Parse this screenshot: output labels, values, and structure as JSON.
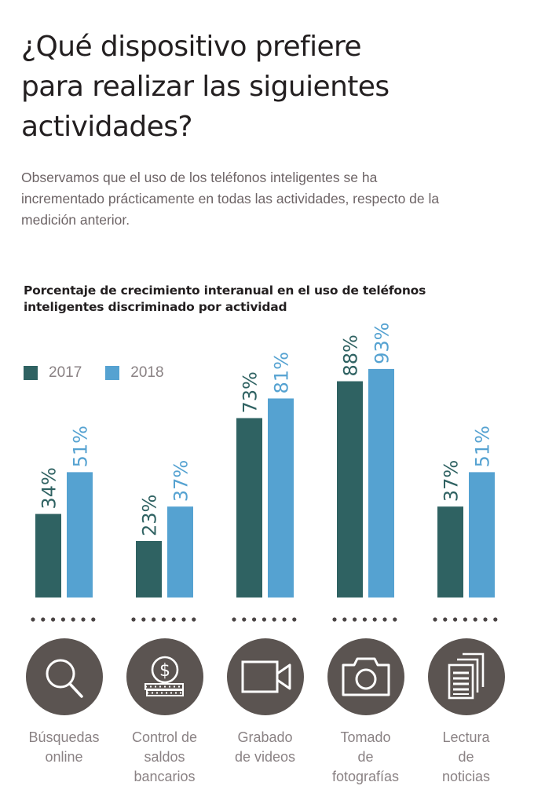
{
  "header": {
    "title": "¿Qué dispositivo prefiere para realizar las siguientes actividades?",
    "title_lines": [
      "¿Qué dispositivo prefiere",
      "para realizar las siguientes",
      "actividades?"
    ],
    "subtitle_lines": [
      "Observamos que el uso de los teléfonos inteligentes se ha",
      "incrementado prácticamente en todas las actividades, respecto de la",
      "medición anterior."
    ]
  },
  "colors": {
    "series_2017": "#2f6262",
    "series_2018": "#55a2d1",
    "icon_bg": "#5b5451",
    "dots": "#4a4444"
  },
  "chart_data": {
    "type": "bar",
    "title": "Porcentaje de crecimiento interanual en el uso de teléfonos inteligentes discriminado por actividad",
    "title_lines": [
      "Porcentaje de crecimiento interanual en el uso de teléfonos",
      "inteligentes discriminado por actividad"
    ],
    "categories": [
      "Búsquedas online",
      "Control de saldos bancarios",
      "Grabado de videos",
      "Tomado de fotografías",
      "Lectura de noticias"
    ],
    "category_lines": [
      [
        "Búsquedas",
        "online"
      ],
      [
        "Control de",
        "saldos",
        "bancarios"
      ],
      [
        "Grabado",
        "de videos"
      ],
      [
        "Tomado",
        "de",
        "fotografías"
      ],
      [
        "Lectura",
        "de",
        "noticias"
      ]
    ],
    "category_icons": [
      "search-icon",
      "coin-dollar-icon",
      "video-camera-icon",
      "photo-camera-icon",
      "documents-icon"
    ],
    "series": [
      {
        "name": "2017",
        "values": [
          34,
          23,
          73,
          88,
          37
        ],
        "labels": [
          "34%",
          "23%",
          "73%",
          "88%",
          "37%"
        ]
      },
      {
        "name": "2018",
        "values": [
          51,
          37,
          81,
          93,
          51
        ],
        "labels": [
          "51%",
          "37%",
          "81%",
          "93%",
          "51%"
        ]
      }
    ],
    "xlabel": "",
    "ylabel": "",
    "ylim": [
      0,
      100
    ],
    "unit": "%",
    "grid": false,
    "legend": "top-left"
  }
}
